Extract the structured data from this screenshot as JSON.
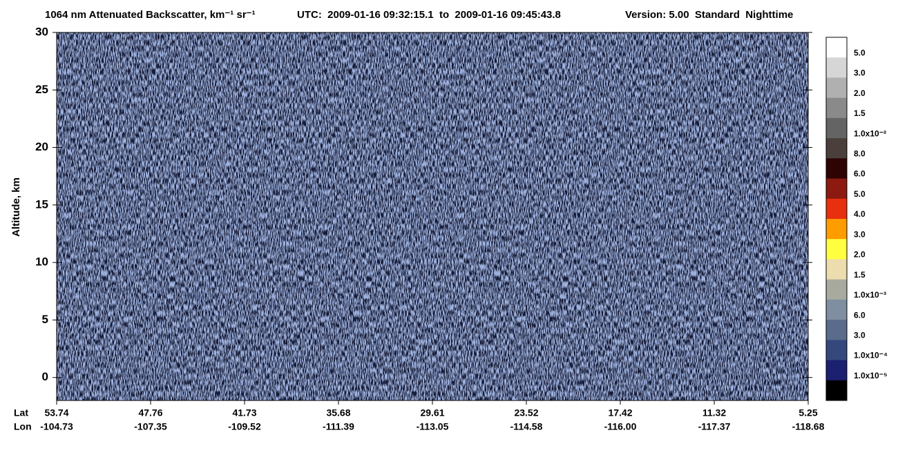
{
  "chart_data": {
    "type": "heatmap",
    "title": "1064 nm Attenuated Backscatter, km⁻¹ sr⁻¹",
    "time_range": "UTC:  2009-01-16 09:32:15.1  to  2009-01-16 09:45:43.8",
    "version": "Version: 5.00  Standard  Nighttime",
    "ylabel": "Altitude, km",
    "ylim": [
      -2,
      30
    ],
    "yticks": [
      0,
      5,
      10,
      15,
      20,
      25,
      30
    ],
    "x_row_labels": [
      "Lat",
      "Lon"
    ],
    "lat": [
      "53.74",
      "47.76",
      "41.73",
      "35.68",
      "29.61",
      "23.52",
      "17.42",
      "11.32",
      "5.25"
    ],
    "lon": [
      "-104.73",
      "-107.35",
      "-109.52",
      "-111.39",
      "-113.05",
      "-114.58",
      "-116.00",
      "-117.37",
      "-118.68"
    ],
    "colorbar": {
      "colors": [
        "#ffffff",
        "#d6d6d6",
        "#b0b0b0",
        "#8a8a8a",
        "#646464",
        "#4a3f3b",
        "#2e0303",
        "#8c1a10",
        "#e8300e",
        "#ff9c00",
        "#ffff40",
        "#ecdcae",
        "#a8aaa0",
        "#7f8ea0",
        "#5a6b8c",
        "#34487e",
        "#1c2070",
        "#000000"
      ],
      "labels": [
        "5.0",
        "3.0",
        "2.0",
        "1.5",
        "1.0x10⁻²",
        "8.0",
        "6.0",
        "5.0",
        "4.0",
        "3.0",
        "2.0",
        "1.5",
        "1.0x10⁻³",
        "6.0",
        "3.0",
        "1.0x10⁻⁴",
        "1.0x10⁻⁵"
      ]
    }
  }
}
